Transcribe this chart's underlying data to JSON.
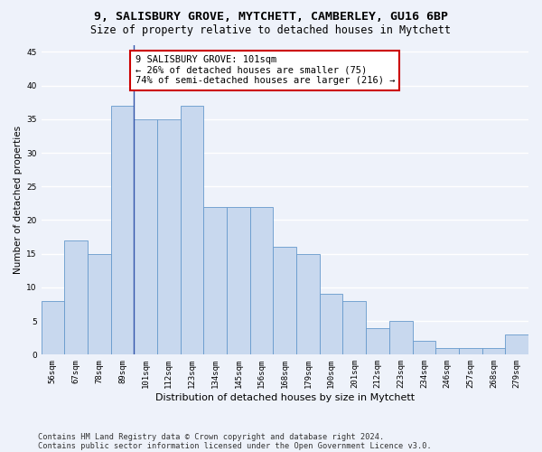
{
  "title1": "9, SALISBURY GROVE, MYTCHETT, CAMBERLEY, GU16 6BP",
  "title2": "Size of property relative to detached houses in Mytchett",
  "xlabel": "Distribution of detached houses by size in Mytchett",
  "ylabel": "Number of detached properties",
  "categories": [
    "56sqm",
    "67sqm",
    "78sqm",
    "89sqm",
    "101sqm",
    "112sqm",
    "123sqm",
    "134sqm",
    "145sqm",
    "156sqm",
    "168sqm",
    "179sqm",
    "190sqm",
    "201sqm",
    "212sqm",
    "223sqm",
    "234sqm",
    "246sqm",
    "257sqm",
    "268sqm",
    "279sqm"
  ],
  "values": [
    8,
    17,
    15,
    37,
    35,
    35,
    37,
    22,
    22,
    22,
    16,
    15,
    9,
    8,
    4,
    5,
    2,
    1,
    1,
    1,
    3
  ],
  "bar_color": "#c8d8ee",
  "bar_edge_color": "#6699cc",
  "highlight_index": 4,
  "highlight_line_color": "#3355aa",
  "annotation_text": "9 SALISBURY GROVE: 101sqm\n← 26% of detached houses are smaller (75)\n74% of semi-detached houses are larger (216) →",
  "annotation_box_color": "#ffffff",
  "annotation_box_edge_color": "#cc0000",
  "ylim": [
    0,
    46
  ],
  "yticks": [
    0,
    5,
    10,
    15,
    20,
    25,
    30,
    35,
    40,
    45
  ],
  "footnote1": "Contains HM Land Registry data © Crown copyright and database right 2024.",
  "footnote2": "Contains public sector information licensed under the Open Government Licence v3.0.",
  "bg_color": "#eef2fa",
  "plot_bg_color": "#eef2fa",
  "grid_color": "#ffffff",
  "title1_fontsize": 9.5,
  "title2_fontsize": 8.5,
  "xlabel_fontsize": 8,
  "ylabel_fontsize": 7.5,
  "tick_fontsize": 6.5,
  "annotation_fontsize": 7.5,
  "footnote_fontsize": 6.2
}
